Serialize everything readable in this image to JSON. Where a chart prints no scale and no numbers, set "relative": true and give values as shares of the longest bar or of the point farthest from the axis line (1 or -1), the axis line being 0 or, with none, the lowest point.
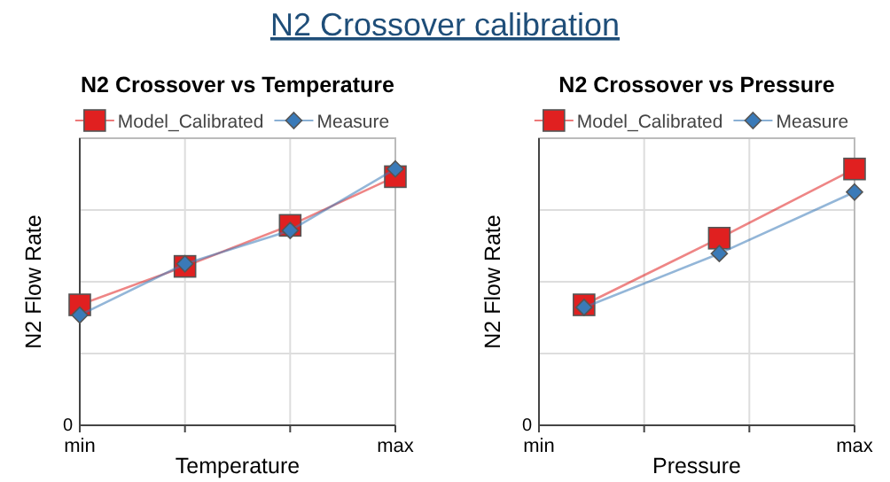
{
  "chart_data": [
    {
      "type": "line",
      "title": "N2 Crossover vs Temperature",
      "xlabel": "Temperature",
      "ylabel": "N2 Flow Rate",
      "relative": true,
      "grid": true,
      "legend": "top",
      "annotations": [
        "N2 Crossover calibration",
        "0"
      ],
      "categories": [
        "min",
        null,
        null,
        "max"
      ],
      "series": [
        {
          "name": "Model_Calibrated",
          "color": "#e02020",
          "marker": "square",
          "values": [
            0.47,
            0.62,
            0.78,
            0.97
          ]
        },
        {
          "name": "Measure",
          "color": "#3a7ab8",
          "marker": "diamond",
          "values": [
            0.43,
            0.63,
            0.76,
            1.0
          ]
        }
      ]
    },
    {
      "type": "line",
      "title": "N2 Crossover vs Pressure",
      "xlabel": "Pressure",
      "ylabel": "N2 Flow Rate",
      "relative": true,
      "grid": true,
      "legend": "top",
      "annotations": [
        "0"
      ],
      "categories": [
        "min",
        null,
        null,
        null,
        null,
        null,
        null,
        "max"
      ],
      "series": [
        {
          "name": "Model_Calibrated",
          "color": "#e02020",
          "marker": "square",
          "values": [
            null,
            0.47,
            null,
            null,
            0.73,
            null,
            null,
            1.0
          ]
        },
        {
          "name": "Measure",
          "color": "#3a7ab8",
          "marker": "diamond",
          "values": [
            null,
            0.46,
            null,
            null,
            0.67,
            null,
            null,
            0.91
          ]
        }
      ]
    }
  ]
}
